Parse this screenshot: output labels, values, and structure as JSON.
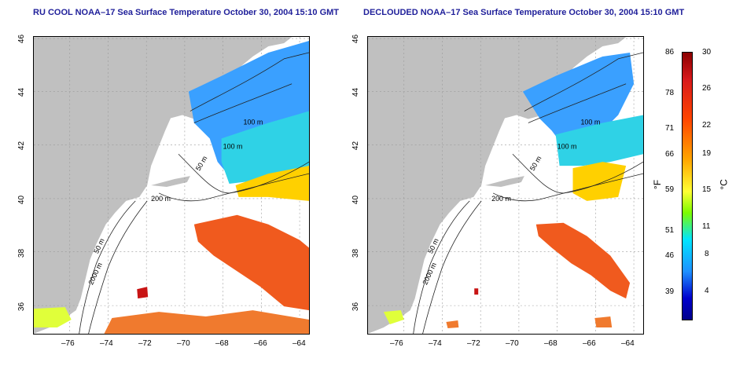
{
  "panels": [
    {
      "title": "RU COOL NOAA–17 Sea Surface Temperature October 30, 2004 15:10 GMT",
      "xticks": [
        "–76",
        "–74",
        "–72",
        "–70",
        "–68",
        "–66",
        "–64"
      ],
      "yticks": [
        "46",
        "44",
        "42",
        "40",
        "38",
        "36"
      ],
      "contour_labels": [
        "100 m",
        "100 m",
        "50 m",
        "200 m",
        "50 m",
        "2000 m"
      ]
    },
    {
      "title": "DECLOUDED NOAA–17 Sea Surface Temperature October 30, 2004 15:10 GMT",
      "xticks": [
        "–76",
        "–74",
        "–72",
        "–70",
        "–68",
        "–66",
        "–64"
      ],
      "yticks": [
        "46",
        "44",
        "42",
        "40",
        "38",
        "36"
      ],
      "contour_labels": [
        "100 m",
        "100 m",
        "50 m",
        "200 m",
        "50 m",
        "2000 m"
      ]
    }
  ],
  "colorbar": {
    "f_ticks": [
      "86",
      "78",
      "71",
      "66",
      "59",
      "51",
      "46",
      "39"
    ],
    "c_ticks": [
      "30",
      "26",
      "22",
      "19",
      "15",
      "11",
      "8",
      "4"
    ],
    "f_unit": "°F",
    "c_unit": "°C",
    "colors": [
      "#8b0000",
      "#d7191c",
      "#ff4500",
      "#ffa500",
      "#ffff33",
      "#7cfc00",
      "#00e5ff",
      "#1e90ff",
      "#0000cd"
    ]
  },
  "colors": {
    "land": "#c0c0c0",
    "title": "#1f1f9a"
  }
}
